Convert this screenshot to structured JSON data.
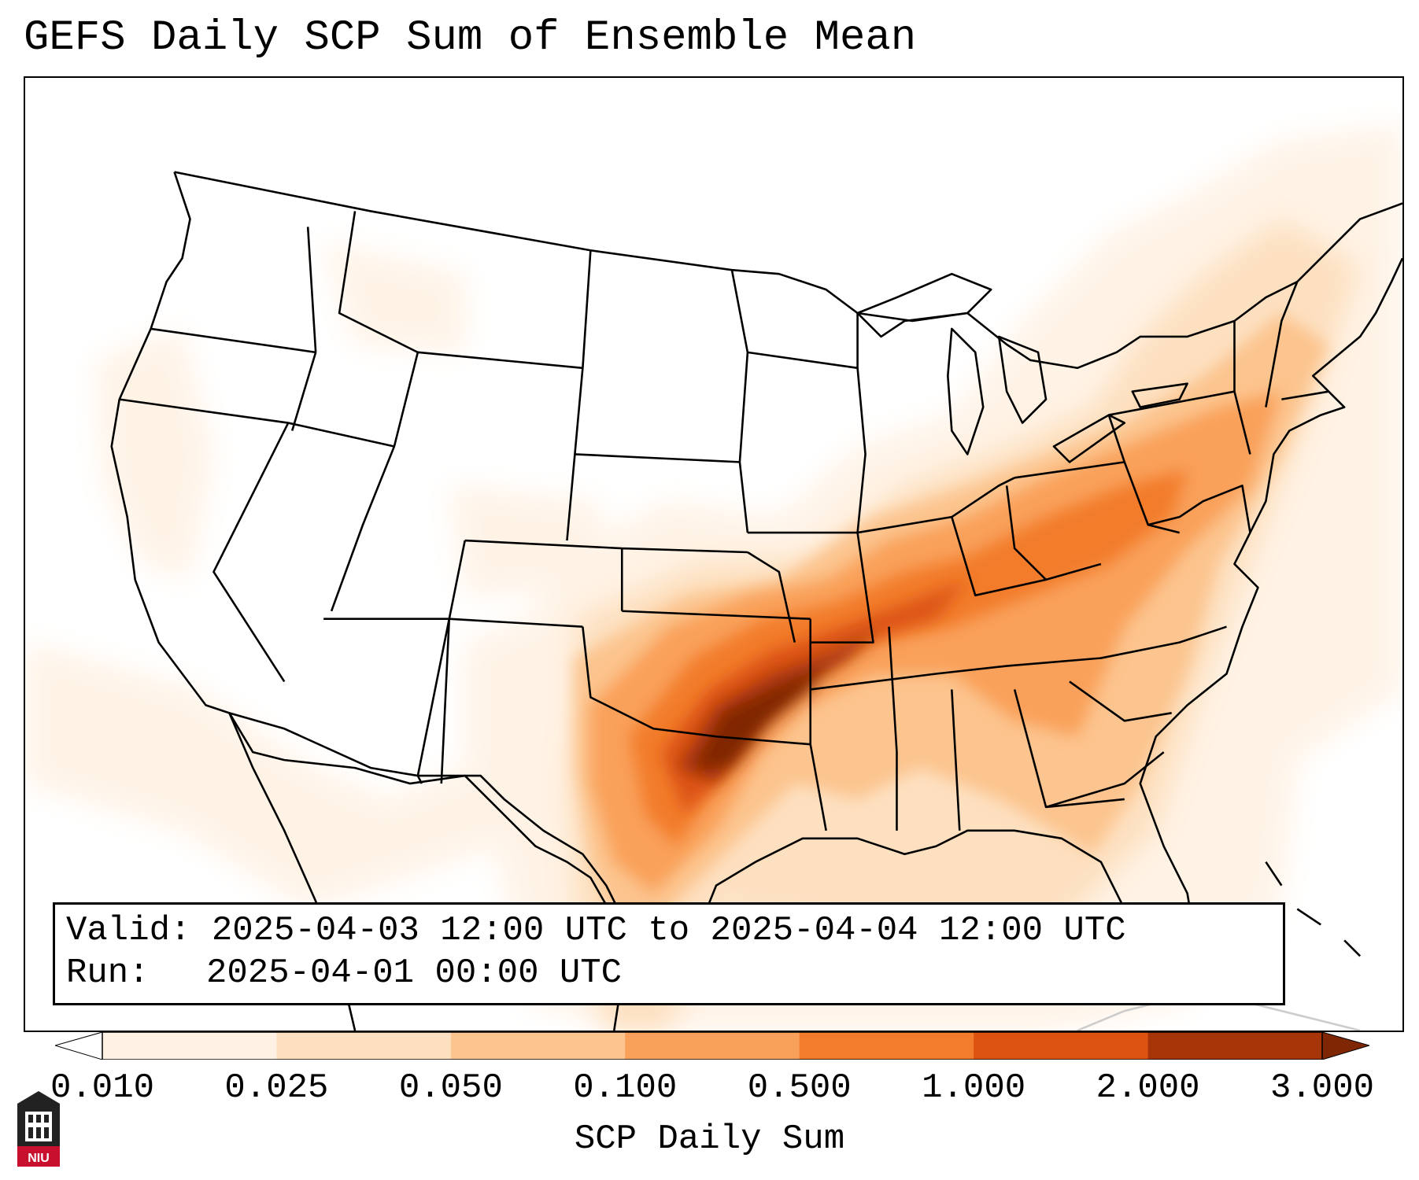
{
  "title": "GEFS Daily SCP Sum of Ensemble Mean",
  "info": {
    "valid_label": "Valid:",
    "valid_value": "2025-04-03 12:00 UTC to 2025-04-04 12:00 UTC",
    "run_label": "Run:",
    "run_value": "2025-04-01 00:00 UTC"
  },
  "colorbar": {
    "label": "SCP Daily Sum",
    "ticks": [
      "0.010",
      "0.025",
      "0.050",
      "0.100",
      "0.500",
      "1.000",
      "2.000",
      "3.000"
    ],
    "colors": [
      "#fff2e4",
      "#fde0c0",
      "#fcc48e",
      "#f9a05a",
      "#f27c2c",
      "#dd5412",
      "#a83508"
    ],
    "under_color": "#ffffff",
    "over_color": "#7f2704"
  },
  "logo": {
    "text": "NIU",
    "color": "#c8102e"
  }
}
